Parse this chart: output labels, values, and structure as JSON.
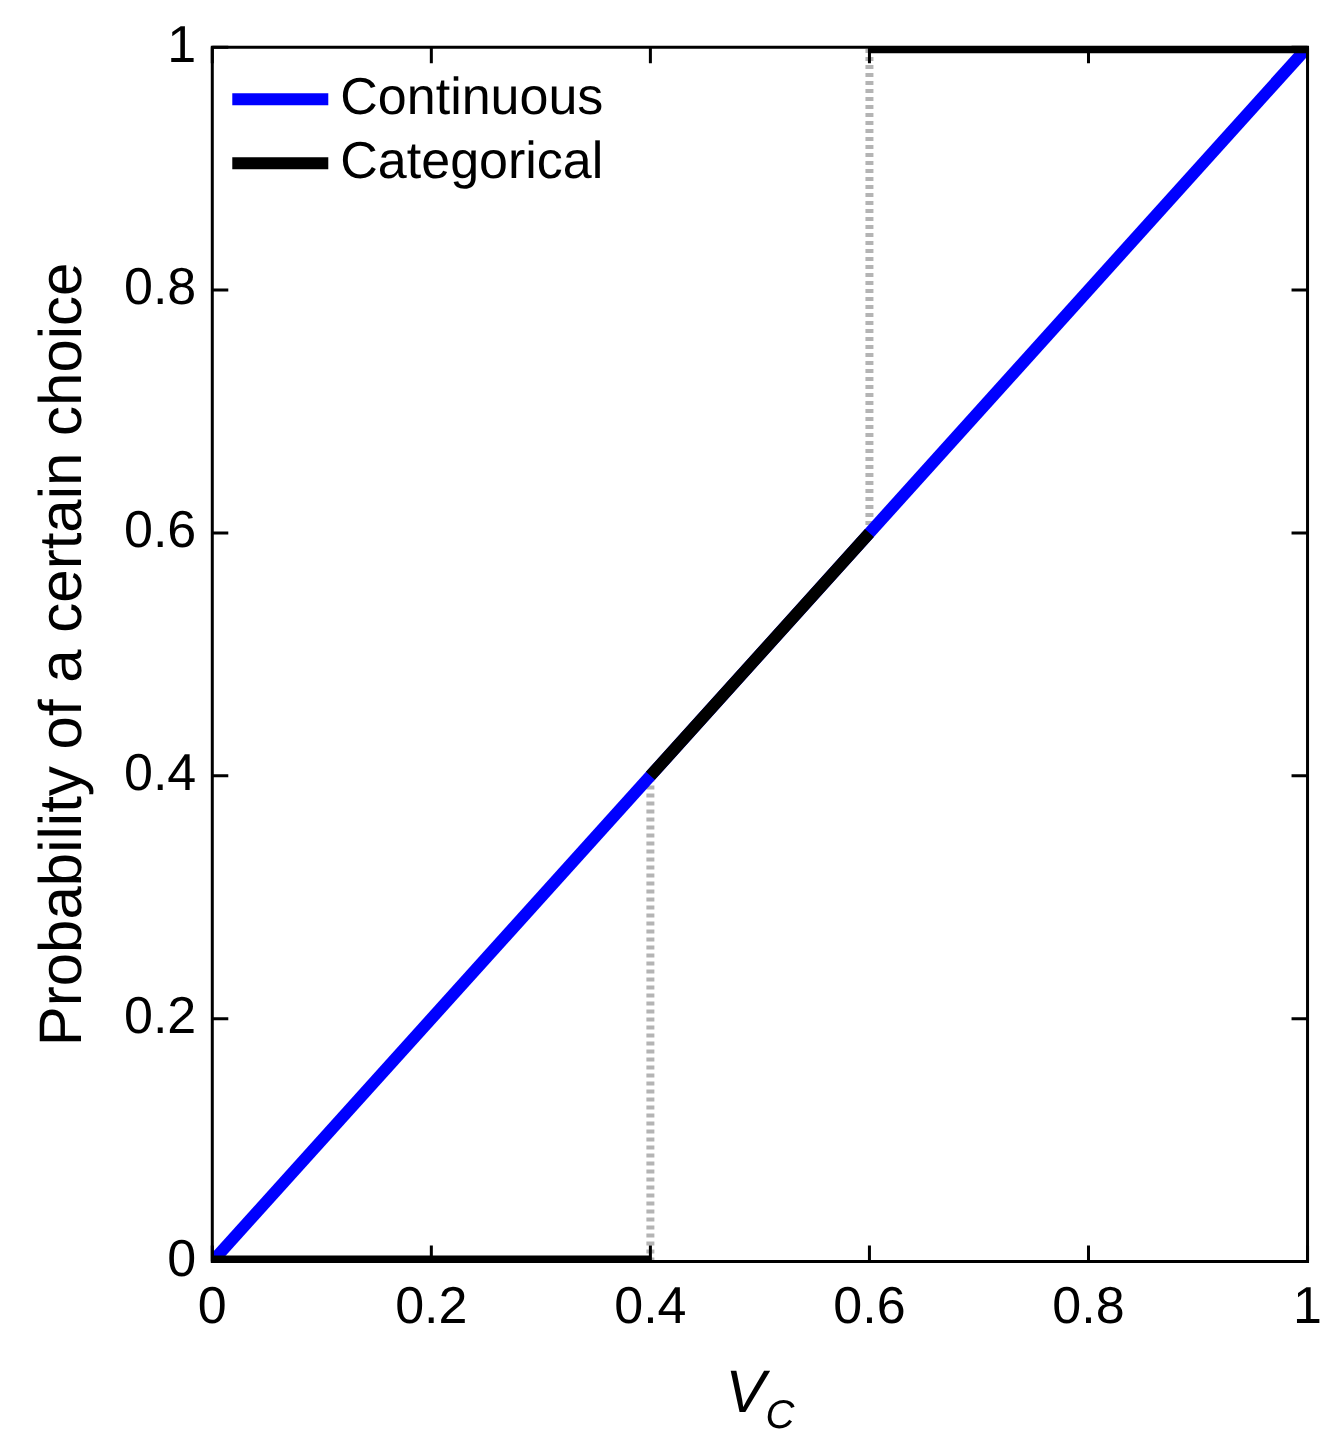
{
  "chart_data": {
    "type": "line",
    "xlabel": "V$_{C}$",
    "ylabel": "Probability of a certain choice",
    "xlim": [
      0,
      1
    ],
    "ylim": [
      0,
      1
    ],
    "xticks": [
      0,
      0.2,
      0.4,
      0.6,
      0.8,
      1
    ],
    "yticks": [
      0,
      0.2,
      0.4,
      0.6,
      0.8,
      1
    ],
    "grid": false,
    "legend": "top left",
    "marker": "none",
    "series": [
      {
        "color": "#b4b4b4",
        "line_style": "dotted",
        "x": [
          0.4,
          0.4,
          null,
          0.6,
          0.6
        ],
        "values": [
          0,
          0.4,
          null,
          0.6,
          1
        ]
      },
      {
        "name": "Continuous",
        "color": "#0000ff",
        "line_style": "solid",
        "x": [
          0,
          1
        ],
        "values": [
          0,
          1
        ]
      },
      {
        "name": "Categorical",
        "color": "#000000",
        "line_style": "solid",
        "x": [
          0,
          0.4,
          null,
          0.4,
          0.6,
          null,
          0.6,
          1
        ],
        "values": [
          0,
          0,
          null,
          0.4,
          0.6,
          null,
          1,
          1
        ]
      }
    ]
  }
}
